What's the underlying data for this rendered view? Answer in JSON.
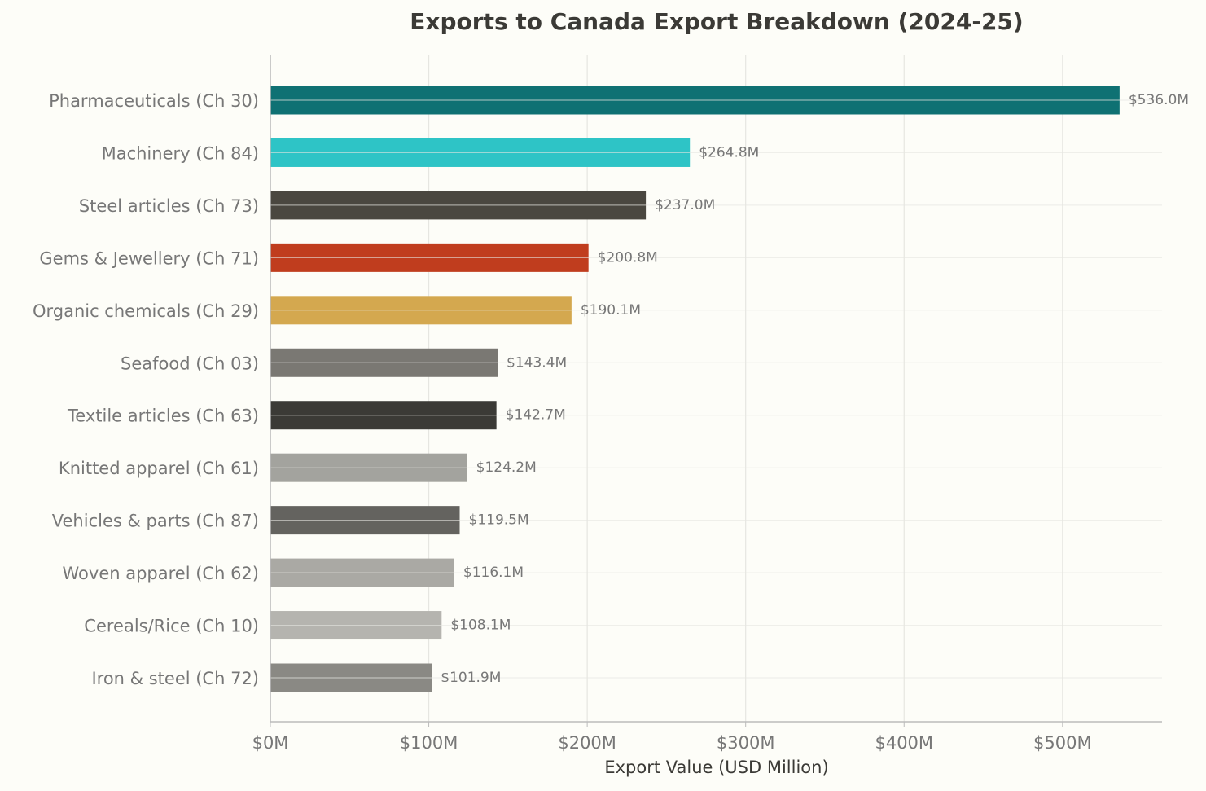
{
  "chart_data": {
    "type": "bar",
    "orientation": "horizontal",
    "title": "Exports to Canada Export Breakdown (2024-25)",
    "xlabel": "Export Value (USD Million)",
    "categories": [
      "Pharmaceuticals (Ch 30)",
      "Machinery (Ch 84)",
      "Steel articles (Ch 73)",
      "Gems & Jewellery (Ch 71)",
      "Organic chemicals (Ch 29)",
      "Seafood (Ch 03)",
      "Textile articles (Ch 63)",
      "Knitted apparel (Ch 61)",
      "Vehicles & parts (Ch 87)",
      "Woven apparel (Ch 62)",
      "Cereals/Rice (Ch 10)",
      "Iron & steel (Ch 72)"
    ],
    "values": [
      536.0,
      264.8,
      237.0,
      200.8,
      190.1,
      143.4,
      142.7,
      124.2,
      119.5,
      116.1,
      108.1,
      101.9
    ],
    "value_labels": [
      "$536.0M",
      "$264.8M",
      "$237.0M",
      "$200.8M",
      "$190.1M",
      "$143.4M",
      "$142.7M",
      "$124.2M",
      "$119.5M",
      "$116.1M",
      "$108.1M",
      "$101.9M"
    ],
    "colors": [
      "#0f7173",
      "#2ec4c6",
      "#4a4740",
      "#c03d1e",
      "#d4a84f",
      "#7a7873",
      "#3b3a36",
      "#a3a39e",
      "#64635f",
      "#aaa9a4",
      "#b5b4af",
      "#8a8984"
    ],
    "xlim": [
      0,
      562.8
    ],
    "xticks": [
      {
        "value": 0,
        "label": "$0M"
      },
      {
        "value": 100,
        "label": "$100M"
      },
      {
        "value": 200,
        "label": "$200M"
      },
      {
        "value": 300,
        "label": "$300M"
      },
      {
        "value": 400,
        "label": "$400M"
      },
      {
        "value": 500,
        "label": "$500M"
      }
    ],
    "grid": true
  }
}
